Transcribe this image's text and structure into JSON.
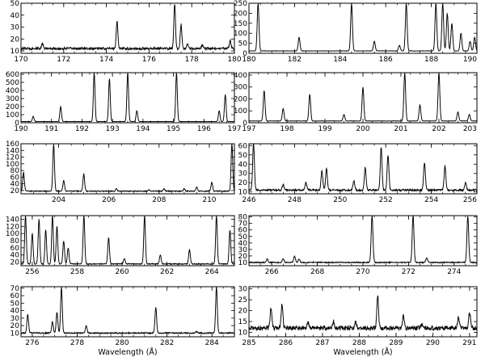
{
  "chart_data": [
    {
      "type": "line",
      "xlim": [
        170,
        180
      ],
      "ylim": [
        8,
        50
      ],
      "xticks": [
        170,
        172,
        174,
        176,
        178,
        180
      ],
      "yticks": [
        10,
        20,
        30,
        40,
        50
      ],
      "xlabel": "",
      "baseline": 12,
      "peaks": [
        [
          171.0,
          16
        ],
        [
          174.5,
          35
        ],
        [
          177.2,
          50
        ],
        [
          177.5,
          32
        ],
        [
          177.8,
          16
        ],
        [
          178.5,
          15
        ],
        [
          179.8,
          19
        ]
      ]
    },
    {
      "type": "line",
      "xlim": [
        180,
        190
      ],
      "ylim": [
        0,
        250
      ],
      "xticks": [
        180,
        182,
        184,
        186,
        188,
        190
      ],
      "yticks": [
        0,
        50,
        100,
        150,
        200,
        250
      ],
      "xlabel": "",
      "baseline": 12,
      "peaks": [
        [
          180.4,
          250
        ],
        [
          182.2,
          80
        ],
        [
          184.5,
          250
        ],
        [
          185.5,
          60
        ],
        [
          186.6,
          40
        ],
        [
          186.9,
          250
        ],
        [
          188.2,
          250
        ],
        [
          188.5,
          250
        ],
        [
          188.7,
          200
        ],
        [
          188.9,
          150
        ],
        [
          189.3,
          100
        ],
        [
          189.7,
          60
        ],
        [
          189.9,
          80
        ]
      ]
    },
    {
      "type": "line",
      "xlim": [
        190,
        197
      ],
      "ylim": [
        0,
        620
      ],
      "xticks": [
        190,
        191,
        192,
        193,
        194,
        195,
        196,
        197
      ],
      "yticks": [
        0,
        100,
        200,
        300,
        400,
        500,
        600
      ],
      "xlabel": "",
      "baseline": 15,
      "peaks": [
        [
          190.4,
          80
        ],
        [
          191.3,
          200
        ],
        [
          192.4,
          620
        ],
        [
          192.9,
          550
        ],
        [
          193.5,
          620
        ],
        [
          193.8,
          150
        ],
        [
          195.1,
          620
        ],
        [
          196.5,
          150
        ],
        [
          196.7,
          350
        ]
      ]
    },
    {
      "type": "line",
      "xlim": [
        197,
        203
      ],
      "ylim": [
        0,
        420
      ],
      "xticks": [
        197,
        198,
        199,
        200,
        201,
        202,
        203
      ],
      "yticks": [
        0,
        100,
        200,
        300,
        400
      ],
      "xlabel": "",
      "baseline": 15,
      "peaks": [
        [
          197.4,
          270
        ],
        [
          197.9,
          120
        ],
        [
          198.6,
          240
        ],
        [
          199.5,
          70
        ],
        [
          200.0,
          300
        ],
        [
          201.1,
          420
        ],
        [
          201.5,
          150
        ],
        [
          202.0,
          420
        ],
        [
          202.5,
          90
        ],
        [
          202.8,
          70
        ]
      ]
    },
    {
      "type": "line",
      "xlim": [
        202.5,
        211
      ],
      "ylim": [
        10,
        160
      ],
      "xticks": [
        204,
        206,
        208,
        210
      ],
      "yticks": [
        20,
        40,
        60,
        80,
        100,
        120,
        140,
        160
      ],
      "xlabel": "",
      "baseline": 18,
      "peaks": [
        [
          202.6,
          75
        ],
        [
          203.8,
          160
        ],
        [
          204.2,
          50
        ],
        [
          205.0,
          70
        ],
        [
          206.3,
          25
        ],
        [
          207.6,
          22
        ],
        [
          208.2,
          25
        ],
        [
          209.0,
          25
        ],
        [
          209.5,
          30
        ],
        [
          210.1,
          45
        ],
        [
          210.9,
          160
        ]
      ]
    },
    {
      "type": "line",
      "xlim": [
        246,
        256
      ],
      "ylim": [
        8,
        62
      ],
      "xticks": [
        246,
        248,
        250,
        252,
        254,
        256
      ],
      "yticks": [
        10,
        20,
        30,
        40,
        50,
        60
      ],
      "xlabel": "",
      "baseline": 12,
      "peaks": [
        [
          246.2,
          62
        ],
        [
          247.5,
          18
        ],
        [
          248.5,
          20
        ],
        [
          249.2,
          33
        ],
        [
          249.4,
          35
        ],
        [
          250.6,
          22
        ],
        [
          251.1,
          36
        ],
        [
          251.8,
          58
        ],
        [
          252.1,
          50
        ],
        [
          253.7,
          42
        ],
        [
          254.6,
          38
        ],
        [
          255.5,
          20
        ]
      ]
    },
    {
      "type": "line",
      "xlim": [
        255.5,
        265
      ],
      "ylim": [
        10,
        150
      ],
      "xticks": [
        256,
        258,
        260,
        262,
        264
      ],
      "yticks": [
        20,
        40,
        60,
        80,
        100,
        120,
        140
      ],
      "xlabel": "",
      "baseline": 15,
      "peaks": [
        [
          255.7,
          150
        ],
        [
          256.0,
          100
        ],
        [
          256.3,
          140
        ],
        [
          256.6,
          110
        ],
        [
          256.9,
          150
        ],
        [
          257.1,
          120
        ],
        [
          257.4,
          80
        ],
        [
          257.6,
          60
        ],
        [
          258.3,
          150
        ],
        [
          259.4,
          90
        ],
        [
          260.1,
          30
        ],
        [
          261.0,
          150
        ],
        [
          261.7,
          40
        ],
        [
          263.0,
          55
        ],
        [
          264.2,
          150
        ],
        [
          264.8,
          110
        ]
      ]
    },
    {
      "type": "line",
      "xlim": [
        265,
        275
      ],
      "ylim": [
        5,
        82
      ],
      "xticks": [
        266,
        268,
        270,
        272,
        274
      ],
      "yticks": [
        10,
        20,
        30,
        40,
        50,
        60,
        70,
        80
      ],
      "xlabel": "",
      "baseline": 10,
      "peaks": [
        [
          265.8,
          15
        ],
        [
          266.5,
          16
        ],
        [
          267.0,
          20
        ],
        [
          267.2,
          15
        ],
        [
          270.4,
          82
        ],
        [
          272.2,
          82
        ],
        [
          272.8,
          17
        ],
        [
          274.6,
          82
        ]
      ]
    },
    {
      "type": "line",
      "xlim": [
        275.5,
        285
      ],
      "ylim": [
        5,
        72
      ],
      "xticks": [
        276,
        278,
        280,
        282,
        284
      ],
      "yticks": [
        10,
        20,
        30,
        40,
        50,
        60,
        70
      ],
      "xlabel": "Wavelength (Å)",
      "baseline": 10,
      "peaks": [
        [
          275.8,
          35
        ],
        [
          276.9,
          25
        ],
        [
          277.1,
          38
        ],
        [
          277.3,
          72
        ],
        [
          278.4,
          20
        ],
        [
          281.5,
          45
        ],
        [
          283.3,
          12
        ],
        [
          284.2,
          72
        ]
      ]
    },
    {
      "type": "line",
      "xlim": [
        285,
        291.2
      ],
      "ylim": [
        8,
        31
      ],
      "xticks": [
        285,
        286,
        287,
        288,
        289,
        290,
        291
      ],
      "yticks": [
        10,
        15,
        20,
        25,
        30
      ],
      "xlabel": "Wavelength (Å)",
      "baseline": 12,
      "peaks": [
        [
          285.6,
          21
        ],
        [
          285.9,
          23
        ],
        [
          286.6,
          15
        ],
        [
          287.3,
          15
        ],
        [
          287.9,
          15
        ],
        [
          288.5,
          27
        ],
        [
          289.2,
          18
        ],
        [
          289.7,
          14
        ],
        [
          290.7,
          17
        ],
        [
          291.0,
          19
        ]
      ]
    }
  ]
}
